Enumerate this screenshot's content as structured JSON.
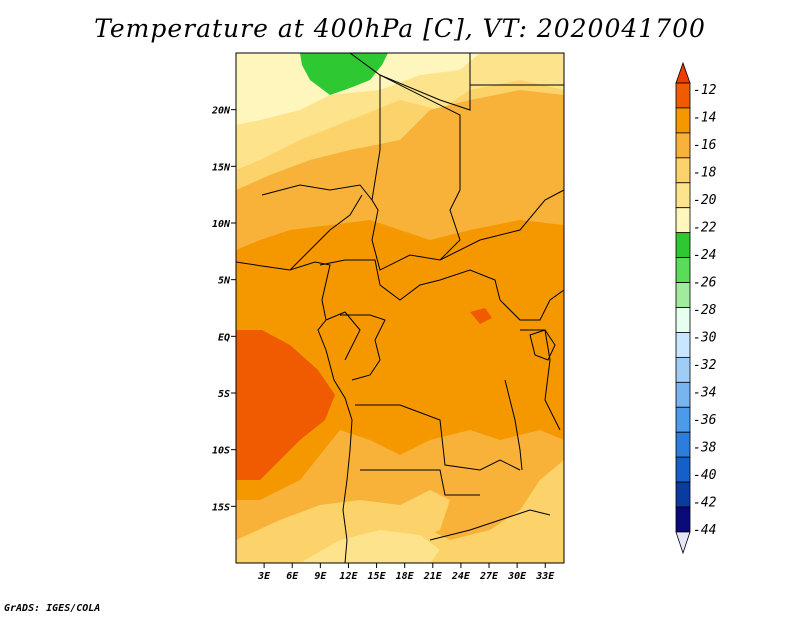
{
  "title": "Temperature at 400hPa [C], VT: 2020041700",
  "credit": "GrADS: IGES/COLA",
  "chart_data": {
    "type": "heatmap",
    "title": "Temperature at 400hPa [C], VT: 2020041700",
    "variable": "Temperature at 400hPa",
    "units": "C",
    "valid_time": "2020041700",
    "lon_range": [
      0,
      35
    ],
    "lat_range": [
      -20,
      25
    ],
    "x_ticks": [
      "3E",
      "6E",
      "9E",
      "12E",
      "15E",
      "18E",
      "21E",
      "24E",
      "27E",
      "30E",
      "33E"
    ],
    "x_tick_values": [
      3,
      6,
      9,
      12,
      15,
      18,
      21,
      24,
      27,
      30,
      33
    ],
    "y_ticks": [
      "20N",
      "15N",
      "10N",
      "5N",
      "EQ",
      "5S",
      "10S",
      "15S"
    ],
    "y_tick_values": [
      20,
      15,
      10,
      5,
      0,
      -5,
      -10,
      -15
    ],
    "colorbar": {
      "labels": [
        "-12",
        "-14",
        "-16",
        "-18",
        "-20",
        "-22",
        "-24",
        "-26",
        "-28",
        "-30",
        "-32",
        "-34",
        "-36",
        "-38",
        "-40",
        "-42",
        "-44"
      ],
      "levels": [
        -12,
        -14,
        -16,
        -18,
        -20,
        -22,
        -24,
        -26,
        -28,
        -30,
        -32,
        -34,
        -36,
        -38,
        -40,
        -42,
        -44
      ],
      "colors": [
        "#f05a00",
        "#f59800",
        "#f8b23a",
        "#fcd26a",
        "#fde48c",
        "#fff6be",
        "#2ec832",
        "#5adc5a",
        "#a0eb9c",
        "#e6fff0",
        "#c8e6ff",
        "#a0cdf5",
        "#78b4f0",
        "#4b9bea",
        "#2d7ddc",
        "#1460c8",
        "#0a3ca0",
        "#0a0a78",
        "#e6e6fa"
      ],
      "top_arrow_color": "#f03c00",
      "bottom_arrow_color": "#e6e6fa"
    },
    "dominant_values": {
      "southwest_atlantic_max": "-12 to -14",
      "central_africa": "-14 to -16",
      "sahel_north": "-16 to -20",
      "northwest_sahara_min": "-22 to -24"
    }
  }
}
